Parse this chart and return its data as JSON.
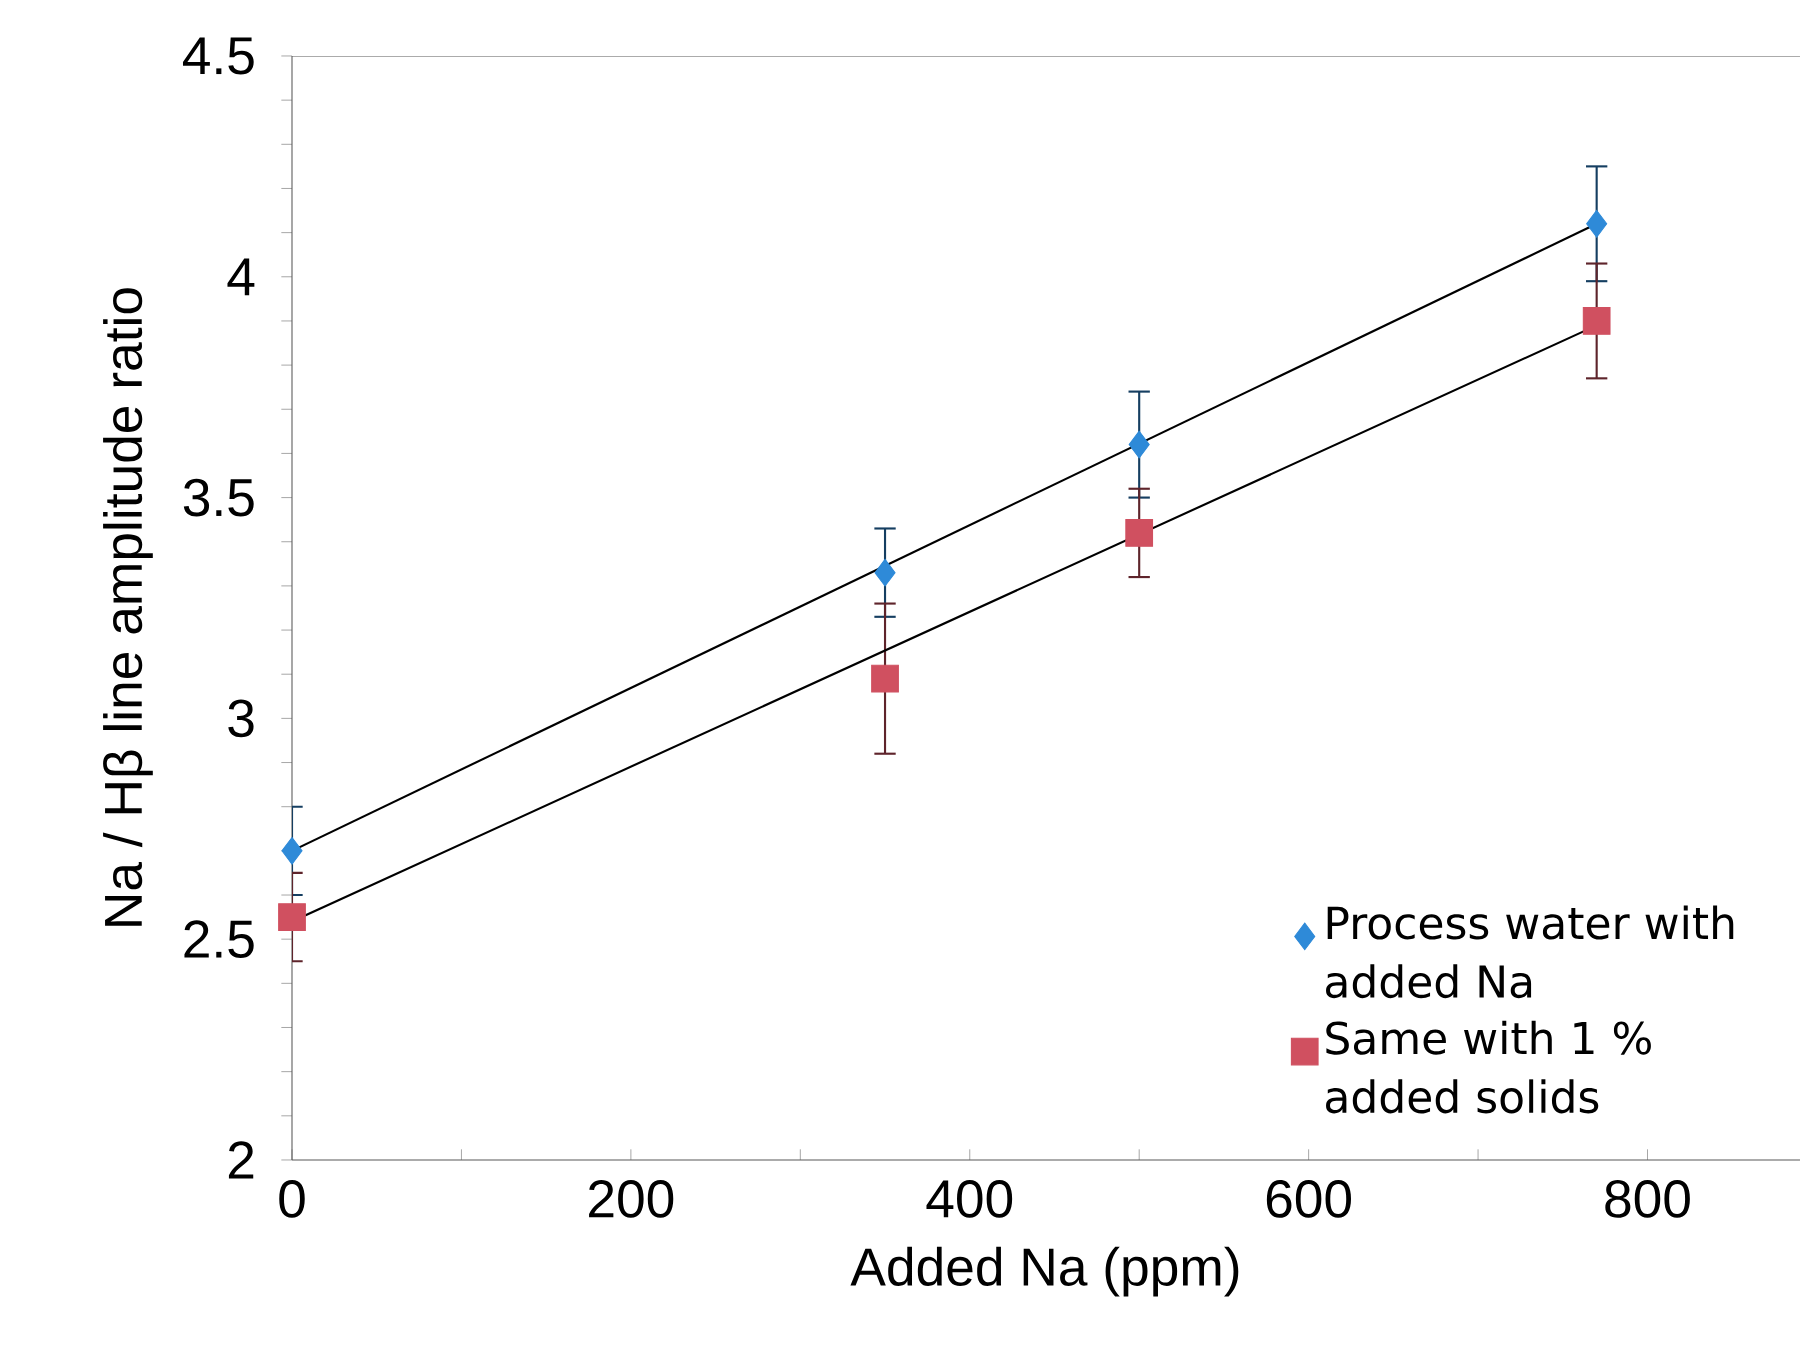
{
  "chart_data": {
    "type": "scatter",
    "xlabel": "Added Na (ppm)",
    "ylabel": "Na / Hβ  line amplitude ratio",
    "xlim": [
      0,
      890
    ],
    "ylim": [
      2,
      4.5
    ],
    "xticks": [
      0,
      {
        "value": 100,
        "label": null
      },
      200,
      {
        "value": 300,
        "label": null
      },
      400,
      {
        "value": 500,
        "label": null
      },
      600,
      {
        "value": 700,
        "label": null
      },
      800
    ],
    "yticks": [
      2,
      {
        "value": 2.1,
        "label": null
      },
      {
        "value": 2.2,
        "label": null
      },
      {
        "value": 2.3,
        "label": null
      },
      {
        "value": 2.4,
        "label": null
      },
      2.5,
      {
        "value": 2.6,
        "label": null
      },
      {
        "value": 2.7,
        "label": null
      },
      {
        "value": 2.8,
        "label": null
      },
      {
        "value": 2.9,
        "label": null
      },
      3,
      {
        "value": 3.1,
        "label": null
      },
      {
        "value": 3.2,
        "label": null
      },
      {
        "value": 3.3,
        "label": null
      },
      {
        "value": 3.4,
        "label": null
      },
      3.5,
      {
        "value": 3.6,
        "label": null
      },
      {
        "value": 3.7,
        "label": null
      },
      {
        "value": 3.8,
        "label": null
      },
      {
        "value": 3.9,
        "label": null
      },
      4,
      {
        "value": 4.1,
        "label": null
      },
      {
        "value": 4.2,
        "label": null
      },
      {
        "value": 4.3,
        "label": null
      },
      {
        "value": 4.4,
        "label": null
      },
      4.5
    ],
    "legend": "bottom right",
    "grid": false,
    "series": [
      {
        "name": "Process water with added Na",
        "color": "#2e8ad8",
        "marker": "diamond",
        "x": [
          0,
          350,
          500,
          770
        ],
        "values": [
          2.7,
          3.33,
          3.62,
          4.12
        ],
        "errors": [
          0.1,
          0.1,
          0.12,
          0.13
        ]
      },
      {
        "name": "Same with 1 % added solids",
        "color": "#d05060",
        "marker": "square",
        "x": [
          0,
          350,
          500,
          770
        ],
        "values": [
          2.55,
          3.09,
          3.42,
          3.9
        ],
        "errors": [
          0.1,
          0.17,
          0.1,
          0.13
        ]
      },
      {
        "type": "line",
        "color": "#000000",
        "x": [
          0,
          770
        ],
        "values": [
          2.7,
          4.12
        ],
        "marker": "none",
        "line_style": "solid"
      },
      {
        "type": "line",
        "color": "#000000",
        "x": [
          0,
          770
        ],
        "values": [
          2.54,
          3.89
        ],
        "marker": "none",
        "line_style": "solid"
      }
    ]
  }
}
